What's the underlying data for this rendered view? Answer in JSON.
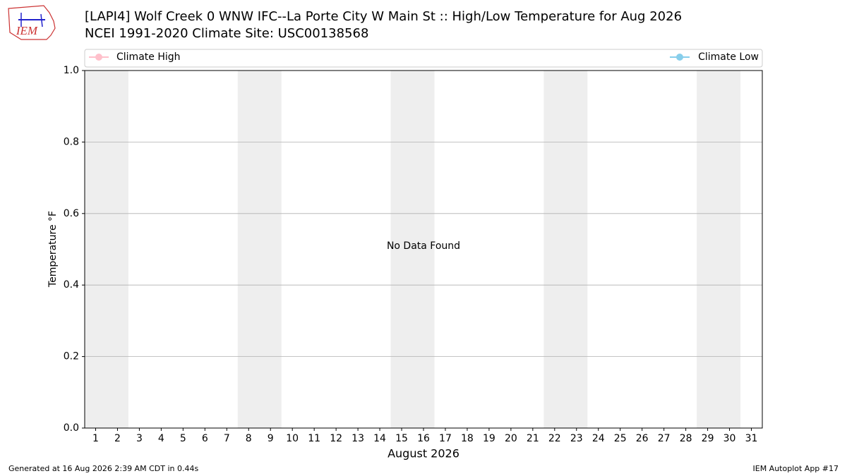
{
  "logo": "IEM",
  "footer": {
    "left": "Generated at 16 Aug 2026 2:39 AM CDT in 0.44s",
    "right": "IEM Autoplot App #17"
  },
  "chart_data": {
    "type": "line",
    "title": "[LAPI4] Wolf Creek 0 WNW IFC--La Porte City W Main St :: High/Low Temperature for Aug 2026",
    "subtitle": "NCEI 1991-2020 Climate Site: USC00138568",
    "x_label": "August 2026",
    "y_label": "Temperature °F",
    "annotation": "No Data Found",
    "x": [
      1,
      2,
      3,
      4,
      5,
      6,
      7,
      8,
      9,
      10,
      11,
      12,
      13,
      14,
      15,
      16,
      17,
      18,
      19,
      20,
      21,
      22,
      23,
      24,
      25,
      26,
      27,
      28,
      29,
      30,
      31
    ],
    "series": [
      {
        "name": "Climate High",
        "color": "#ffc0cb",
        "values": [
          null,
          null,
          null,
          null,
          null,
          null,
          null,
          null,
          null,
          null,
          null,
          null,
          null,
          null,
          null,
          null,
          null,
          null,
          null,
          null,
          null,
          null,
          null,
          null,
          null,
          null,
          null,
          null,
          null,
          null,
          null
        ]
      },
      {
        "name": "Climate Low",
        "color": "#87ceeb",
        "values": [
          null,
          null,
          null,
          null,
          null,
          null,
          null,
          null,
          null,
          null,
          null,
          null,
          null,
          null,
          null,
          null,
          null,
          null,
          null,
          null,
          null,
          null,
          null,
          null,
          null,
          null,
          null,
          null,
          null,
          null,
          null
        ]
      }
    ],
    "weekend_bands": [
      [
        0.5,
        2.5
      ],
      [
        7.5,
        9.5
      ],
      [
        14.5,
        16.5
      ],
      [
        21.5,
        23.5
      ],
      [
        28.5,
        30.5
      ]
    ],
    "band_color": "#eeeeee",
    "xlim": [
      0.5,
      31.5
    ],
    "xticks": [
      1,
      2,
      3,
      4,
      5,
      6,
      7,
      8,
      9,
      10,
      11,
      12,
      13,
      14,
      15,
      16,
      17,
      18,
      19,
      20,
      21,
      22,
      23,
      24,
      25,
      26,
      27,
      28,
      29,
      30,
      31
    ],
    "ylim": [
      0,
      1
    ],
    "yticks": [
      {
        "value": 0,
        "label": "0.0"
      },
      {
        "value": 0.2,
        "label": "0.2"
      },
      {
        "value": 0.4,
        "label": "0.4"
      },
      {
        "value": 0.6,
        "label": "0.6"
      },
      {
        "value": 0.8,
        "label": "0.8"
      },
      {
        "value": 1,
        "label": "1.0"
      }
    ],
    "grid": true
  }
}
